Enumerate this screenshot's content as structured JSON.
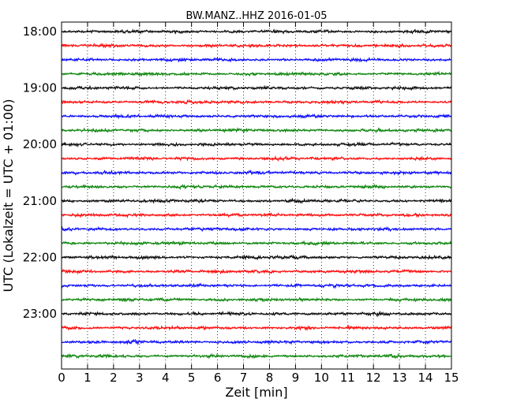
{
  "chart_data": {
    "type": "line",
    "title": "BW.MANZ..HHZ 2016-01-05",
    "xlabel": "Zeit  [min]",
    "ylabel": "UTC (Lokalzeit = UTC + 01:00)",
    "xlim": [
      0,
      15
    ],
    "x_ticks": [
      "0",
      "1",
      "2",
      "3",
      "4",
      "5",
      "6",
      "7",
      "8",
      "9",
      "10",
      "11",
      "12",
      "13",
      "14",
      "15"
    ],
    "y_tick_labels": [
      "18:00",
      "19:00",
      "20:00",
      "21:00",
      "22:00",
      "23:00"
    ],
    "grid": "vertical dotted lines at each minute",
    "trace_colors": [
      "#000000",
      "#ff0000",
      "#0000ff",
      "#008000"
    ],
    "series": [
      {
        "start": "18:00"
      },
      {
        "start": "18:15"
      },
      {
        "start": "18:30"
      },
      {
        "start": "18:45"
      },
      {
        "start": "19:00"
      },
      {
        "start": "19:15"
      },
      {
        "start": "19:30"
      },
      {
        "start": "19:45"
      },
      {
        "start": "20:00"
      },
      {
        "start": "20:15"
      },
      {
        "start": "20:30"
      },
      {
        "start": "20:45"
      },
      {
        "start": "21:00"
      },
      {
        "start": "21:15"
      },
      {
        "start": "21:30"
      },
      {
        "start": "21:45"
      },
      {
        "start": "22:00"
      },
      {
        "start": "22:15"
      },
      {
        "start": "22:30"
      },
      {
        "start": "22:45"
      },
      {
        "start": "23:00"
      },
      {
        "start": "23:15"
      },
      {
        "start": "23:30"
      },
      {
        "start": "23:45"
      }
    ]
  }
}
